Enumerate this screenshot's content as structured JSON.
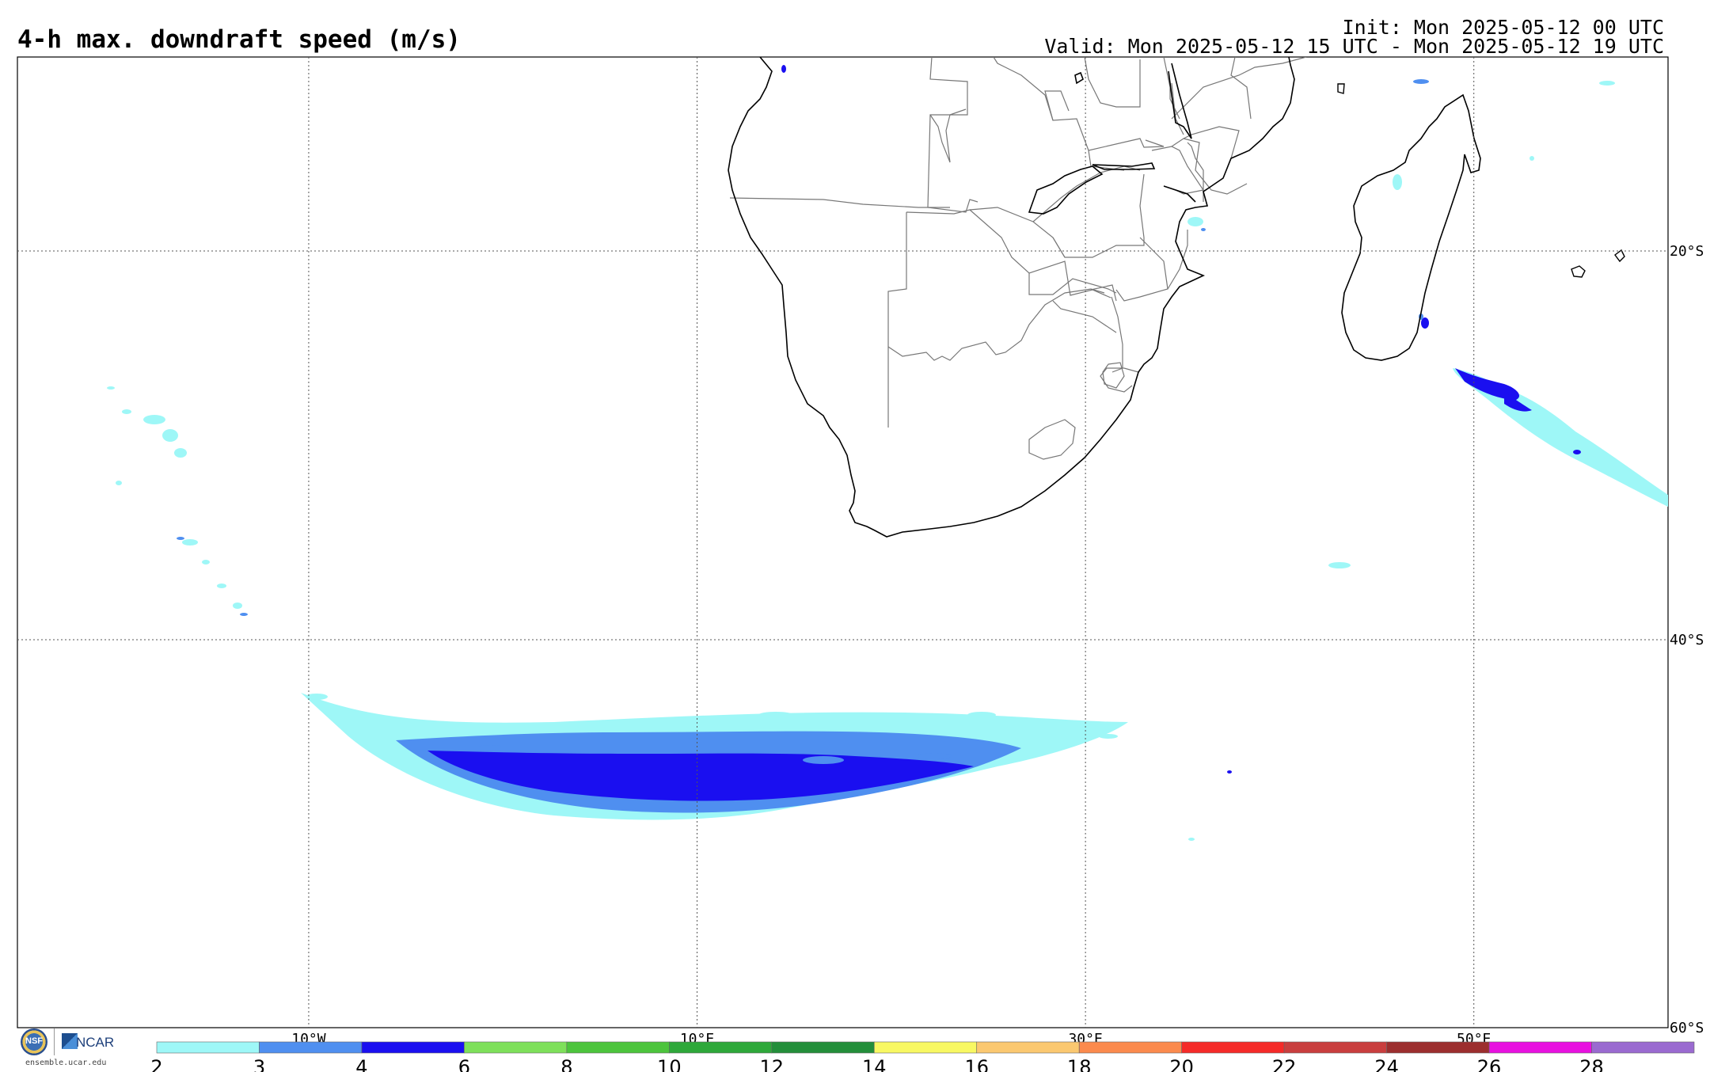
{
  "header": {
    "title": "4-h max. downdraft speed (m/s)",
    "init": "Init: Mon 2025-05-12 00 UTC",
    "valid": "Valid: Mon 2025-05-12 15 UTC - Mon 2025-05-12 19 UTC"
  },
  "map": {
    "longitudes": [
      {
        "label": "10°W",
        "value": -10
      },
      {
        "label": "10°E",
        "value": 10
      },
      {
        "label": "30°E",
        "value": 30
      },
      {
        "label": "50°E",
        "value": 50
      }
    ],
    "latitudes": [
      {
        "label": "20°S",
        "value": -20
      },
      {
        "label": "40°S",
        "value": -40
      },
      {
        "label": "60°S",
        "value": -60
      }
    ],
    "lon_range": [
      -25,
      60
    ],
    "lat_range": [
      -60,
      -10
    ]
  },
  "colorbar": {
    "labels": [
      "2",
      "3",
      "4",
      "6",
      "8",
      "10",
      "12",
      "14",
      "16",
      "18",
      "20",
      "22",
      "24",
      "26",
      "28"
    ],
    "colors": [
      "#9ef7f7",
      "#4f8ff0",
      "#1a0ff0",
      "#7ee05a",
      "#4cc43c",
      "#2ea83a",
      "#238e3a",
      "#f8f862",
      "#fbc870",
      "#fb8a4d",
      "#f52a28",
      "#c93e3e",
      "#9c2e2e",
      "#e810e0",
      "#9a6ad0"
    ]
  },
  "footer": {
    "nsf_label": "NSF",
    "ncar_label": "NCAR",
    "site": "ensemble.ucar.edu"
  },
  "colors": {
    "light_cyan": "#9ef7f7",
    "medium_blue": "#4f8ff0",
    "deep_blue": "#1a0ff0",
    "grid": "#555555",
    "coast": "#000000",
    "border": "#777777"
  }
}
